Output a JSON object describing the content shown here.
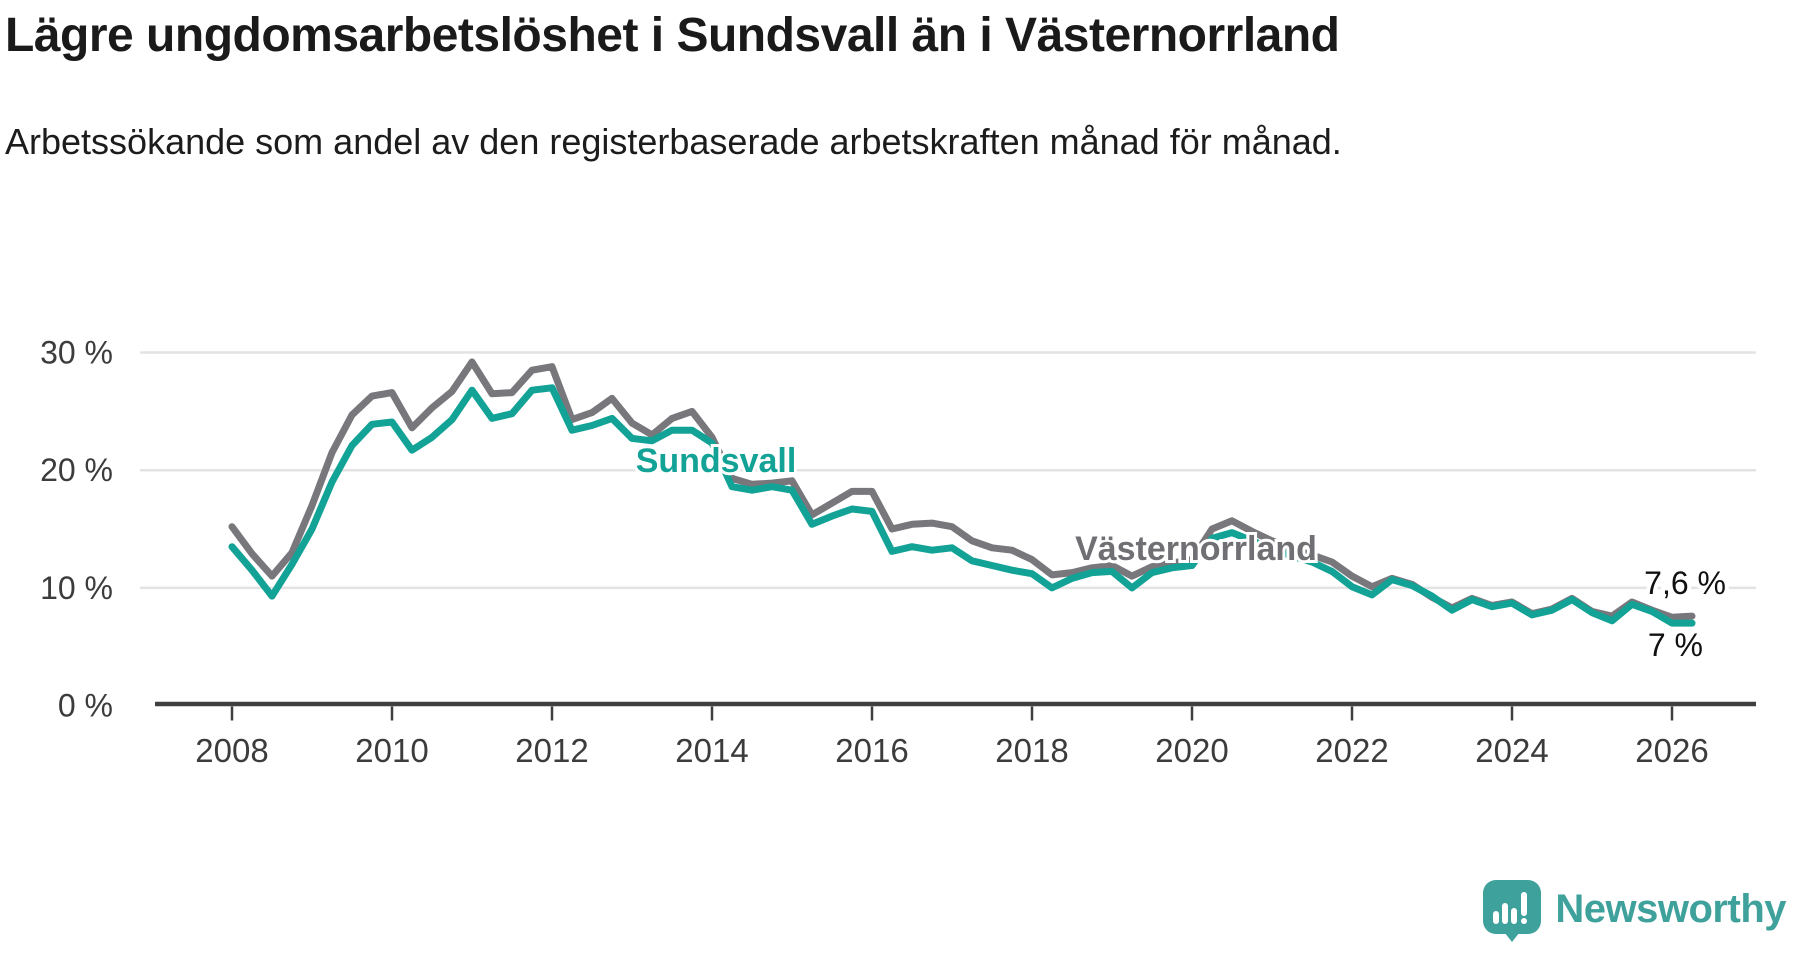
{
  "title": "Lägre ungdomsarbetslöshet i Sundsvall än i Västernorrland",
  "subtitle": "Arbetssökande som andel av den registerbaserade arbetskraften månad för månad.",
  "footer": {
    "brand": "Newsworthy"
  },
  "colors": {
    "sundsvall": "#12a296",
    "vasternorrland": "#77777c",
    "vasternorrland_label": "#6f6f74",
    "grid": "#e3e3e3",
    "axis": "#404040",
    "tick_text": "#3c3c3c",
    "end_label_text": "#111111",
    "brand_teal": "#3fa19b"
  },
  "chart_data": {
    "type": "line",
    "x_start": 2008,
    "x_step_years": 0.25,
    "x_axis_ticks": [
      2008,
      2010,
      2012,
      2014,
      2016,
      2018,
      2020,
      2022,
      2024,
      2026
    ],
    "y_axis_ticks": [
      {
        "value": 30,
        "label": "30 %"
      },
      {
        "value": 20,
        "label": "20 %"
      },
      {
        "value": 10,
        "label": "10 %"
      },
      {
        "value": 0,
        "label": "0 %"
      }
    ],
    "ylim": [
      0,
      31
    ],
    "grid": true,
    "legend_position": "inline",
    "series": [
      {
        "name": "Västernorrland",
        "color": "#77777c",
        "end_label": "7,6 %",
        "values": [
          15.2,
          12.9,
          11.0,
          13.0,
          17.0,
          21.5,
          24.7,
          26.3,
          26.6,
          23.6,
          25.3,
          26.7,
          29.2,
          26.5,
          26.6,
          28.5,
          28.8,
          24.3,
          24.9,
          26.1,
          24.0,
          23.0,
          24.4,
          25.0,
          22.8,
          19.3,
          18.8,
          18.9,
          19.1,
          16.2,
          17.2,
          18.2,
          18.2,
          15.0,
          15.4,
          15.5,
          15.2,
          14.0,
          13.4,
          13.2,
          12.4,
          11.1,
          11.3,
          11.7,
          11.9,
          11.0,
          11.8,
          12.1,
          12.4,
          15.0,
          15.7,
          14.8,
          14.0,
          13.3,
          12.8,
          12.2,
          11.0,
          10.1,
          10.8,
          10.3,
          9.2,
          8.3,
          9.1,
          8.5,
          8.8,
          7.8,
          8.2,
          9.1,
          8.0,
          7.6,
          8.8,
          8.1,
          7.5,
          7.6
        ]
      },
      {
        "name": "Sundsvall",
        "color": "#12a296",
        "end_label": "7 %",
        "values": [
          13.5,
          11.5,
          9.3,
          12.0,
          15.0,
          19.0,
          22.1,
          23.9,
          24.1,
          21.7,
          22.8,
          24.3,
          26.8,
          24.4,
          24.8,
          26.8,
          27.0,
          23.4,
          23.8,
          24.4,
          22.7,
          22.5,
          23.4,
          23.4,
          22.3,
          18.6,
          18.3,
          18.6,
          18.3,
          15.4,
          16.1,
          16.7,
          16.5,
          13.1,
          13.5,
          13.2,
          13.4,
          12.3,
          11.9,
          11.5,
          11.2,
          10.0,
          10.8,
          11.3,
          11.4,
          10.0,
          11.3,
          11.7,
          11.9,
          14.2,
          14.7,
          14.0,
          13.3,
          12.7,
          12.2,
          11.4,
          10.1,
          9.4,
          10.7,
          10.2,
          9.3,
          8.1,
          9.0,
          8.4,
          8.7,
          7.7,
          8.1,
          9.0,
          7.9,
          7.2,
          8.6,
          8.0,
          7.0,
          7.0
        ]
      }
    ]
  }
}
